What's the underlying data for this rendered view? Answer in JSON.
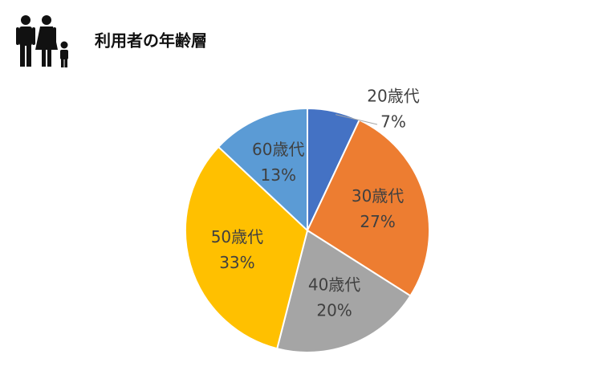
{
  "chart_data": {
    "type": "pie",
    "title": "利用者の年齢層",
    "categories": [
      "20歳代",
      "30歳代",
      "40歳代",
      "50歳代",
      "60歳代"
    ],
    "values": [
      7,
      27,
      20,
      33,
      13
    ],
    "value_labels": [
      "7%",
      "27%",
      "20%",
      "33%",
      "13%"
    ],
    "colors": [
      "#4472c4",
      "#ed7d31",
      "#a5a5a5",
      "#ffc000",
      "#5b9bd5"
    ]
  }
}
